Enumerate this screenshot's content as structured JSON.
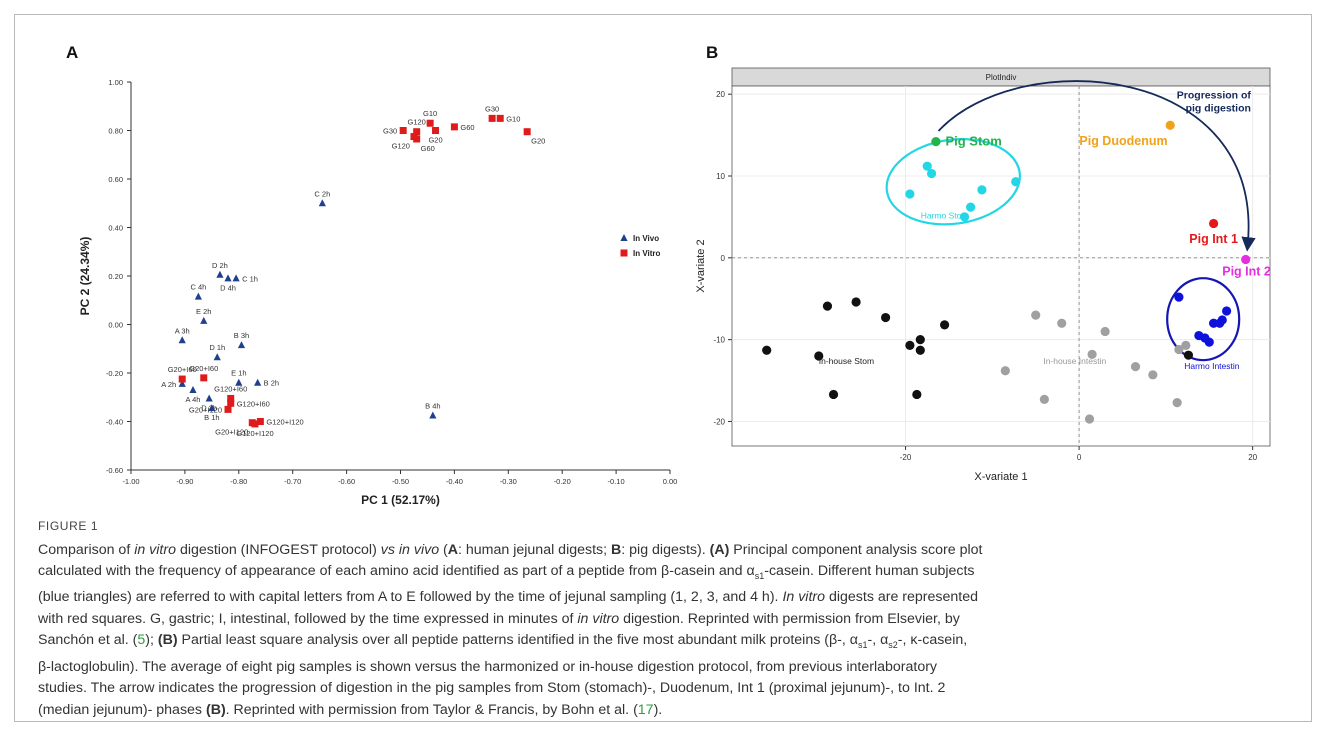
{
  "figure": {
    "panel_a_label": "A",
    "panel_b_label": "B",
    "caption_label": "FIGURE 1",
    "caption_lines": [
      [
        {
          "t": "Comparison of "
        },
        {
          "t": "in vitro",
          "i": true
        },
        {
          "t": " digestion (INFOGEST protocol) "
        },
        {
          "t": "vs in vivo",
          "i": true
        },
        {
          "t": " ("
        },
        {
          "t": "A",
          "b": true
        },
        {
          "t": ": human jejunal digests; "
        },
        {
          "t": "B",
          "b": true
        },
        {
          "t": ": pig digests). "
        },
        {
          "t": "(A)",
          "b": true
        },
        {
          "t": " Principal component analysis score plot"
        }
      ],
      [
        {
          "t": "calculated with the frequency of appearance of each amino acid identified as part of a peptide from β-casein and α"
        },
        {
          "t": "s1",
          "sub": true
        },
        {
          "t": "-casein. Different human subjects"
        }
      ],
      [
        {
          "t": "(blue triangles) are referred to with capital letters from A to E followed by the time of jejunal sampling (1, 2, 3, and 4 h). "
        },
        {
          "t": "In vitro",
          "i": true
        },
        {
          "t": " digests are represented"
        }
      ],
      [
        {
          "t": "with red squares. G, gastric; I, intestinal, followed by the time expressed in minutes of "
        },
        {
          "t": "in vitro",
          "i": true
        },
        {
          "t": " digestion. Reprinted with permission from Elsevier, by"
        }
      ],
      [
        {
          "t": "Sanchón et al. ("
        },
        {
          "t": "5",
          "link": true
        },
        {
          "t": "); "
        },
        {
          "t": "(B)",
          "b": true
        },
        {
          "t": " Partial least square analysis over all peptide patterns identified in the five most abundant milk proteins (β-, α"
        },
        {
          "t": "s1",
          "sub": true
        },
        {
          "t": "-, α"
        },
        {
          "t": "s2",
          "sub": true
        },
        {
          "t": "-, κ-casein,"
        }
      ],
      [
        {
          "t": "β-lactoglobulin). The average of eight pig samples is shown versus the harmonized or in-house digestion protocol, from previous interlaboratory"
        }
      ],
      [
        {
          "t": "studies. The arrow indicates the progression of digestion in the pig samples from Stom (stomach)-, Duodenum, Int 1 (proximal jejunum)-, to Int. 2"
        }
      ],
      [
        {
          "t": "(median jejunum)- phases "
        },
        {
          "t": "(B)",
          "b": true
        },
        {
          "t": ". Reprinted with permission from Taylor & Francis, by Bohn et al. ("
        },
        {
          "t": "17",
          "link": true
        },
        {
          "t": ")."
        }
      ]
    ]
  },
  "chart_data": [
    {
      "type": "scatter",
      "panel": "A",
      "xlabel": "PC 1 (52.17%)",
      "ylabel": "PC 2 (24.34%)",
      "xlim": [
        -1.0,
        0.0
      ],
      "ylim": [
        -0.6,
        1.0
      ],
      "x_ticks": [
        -1.0,
        -0.9,
        -0.8,
        -0.7,
        -0.6,
        -0.5,
        -0.4,
        -0.3,
        -0.2,
        -0.1,
        0.0
      ],
      "x_tick_labels": [
        "-1.00",
        "-0.90",
        "-0.80",
        "-0.70",
        "-0.60",
        "-0.50",
        "-0.40",
        "-0.30",
        "-0.20",
        "-0.10",
        "0.00"
      ],
      "y_ticks": [
        1.0,
        0.8,
        0.6,
        0.4,
        0.2,
        0.0,
        -0.2,
        -0.4,
        -0.6
      ],
      "y_tick_labels": [
        "1.00",
        "0.80",
        "0.60",
        "0.40",
        "0.20",
        "0.00",
        "-0.20",
        "-0.40",
        "-0.60"
      ],
      "legend": {
        "position": "right",
        "entries": [
          {
            "name": "In Vivo",
            "color": "#1f3f8f",
            "marker": "triangle"
          },
          {
            "name": "In Vitro",
            "color": "#e01b1b",
            "marker": "square"
          }
        ]
      },
      "series": [
        {
          "name": "In Vivo",
          "color": "#1f3f8f",
          "marker": "triangle",
          "points": [
            {
              "x": -0.645,
              "y": 0.5,
              "label": "C 2h",
              "lp": "up"
            },
            {
              "x": -0.835,
              "y": 0.205,
              "label": "D 2h",
              "lp": "up"
            },
            {
              "x": -0.82,
              "y": 0.19,
              "label": "D 4h",
              "lp": "down"
            },
            {
              "x": -0.805,
              "y": 0.19,
              "label": "C 1h",
              "lp": "right"
            },
            {
              "x": -0.875,
              "y": 0.115,
              "label": "C 4h",
              "lp": "up"
            },
            {
              "x": -0.865,
              "y": 0.015,
              "label": "E 2h",
              "lp": "up"
            },
            {
              "x": -0.905,
              "y": -0.065,
              "label": "A 3h",
              "lp": "up"
            },
            {
              "x": -0.795,
              "y": -0.085,
              "label": "B 3h",
              "lp": "up"
            },
            {
              "x": -0.84,
              "y": -0.135,
              "label": "D 1h",
              "lp": "up"
            },
            {
              "x": -0.8,
              "y": -0.24,
              "label": "E 1h",
              "lp": "up"
            },
            {
              "x": -0.765,
              "y": -0.24,
              "label": "B 2h",
              "lp": "right"
            },
            {
              "x": -0.905,
              "y": -0.245,
              "label": "A 2h",
              "lp": "left"
            },
            {
              "x": -0.885,
              "y": -0.27,
              "label": "A 4h",
              "lp": "down"
            },
            {
              "x": -0.855,
              "y": -0.305,
              "label": "D 3h",
              "lp": "down"
            },
            {
              "x": -0.85,
              "y": -0.345,
              "label": "B 1h",
              "lp": "down"
            },
            {
              "x": -0.44,
              "y": -0.375,
              "label": "B 4h",
              "lp": "up"
            }
          ]
        },
        {
          "name": "In Vitro",
          "color": "#e01b1b",
          "marker": "square",
          "points": [
            {
              "x": -0.445,
              "y": 0.83,
              "label": "G10",
              "lp": "up"
            },
            {
              "x": -0.47,
              "y": 0.795,
              "label": "G120",
              "lp": "up"
            },
            {
              "x": -0.495,
              "y": 0.8,
              "label": "G30",
              "lp": "left"
            },
            {
              "x": -0.4,
              "y": 0.815,
              "label": "G60",
              "lp": "right"
            },
            {
              "x": -0.435,
              "y": 0.8,
              "label": "G20",
              "lp": "down"
            },
            {
              "x": -0.475,
              "y": 0.775,
              "label": "G120",
              "lp": "downleft"
            },
            {
              "x": -0.47,
              "y": 0.765,
              "label": "G60",
              "lp": "downright"
            },
            {
              "x": -0.33,
              "y": 0.85,
              "label": "G30",
              "lp": "up"
            },
            {
              "x": -0.315,
              "y": 0.85,
              "label": "G10",
              "lp": "right"
            },
            {
              "x": -0.265,
              "y": 0.795,
              "label": "G20",
              "lp": "downright"
            },
            {
              "x": -0.905,
              "y": -0.225,
              "label": "G20+I60",
              "lp": "up"
            },
            {
              "x": -0.865,
              "y": -0.22,
              "label": "G20+I60",
              "lp": "up"
            },
            {
              "x": -0.815,
              "y": -0.305,
              "label": "G120+I60",
              "lp": "up"
            },
            {
              "x": -0.815,
              "y": -0.325,
              "label": "G120+I60",
              "lp": "right"
            },
            {
              "x": -0.82,
              "y": -0.35,
              "label": "G20+I120",
              "lp": "left"
            },
            {
              "x": -0.775,
              "y": -0.405,
              "label": "G20+I120",
              "lp": "downleft"
            },
            {
              "x": -0.76,
              "y": -0.4,
              "label": "G120+I120",
              "lp": "right"
            },
            {
              "x": -0.77,
              "y": -0.41,
              "label": "G120+I120",
              "lp": "down"
            }
          ]
        }
      ]
    },
    {
      "type": "scatter",
      "panel": "B",
      "title": "PlotIndiv",
      "xlabel": "X-variate 1",
      "ylabel": "X-variate 2",
      "xlim": [
        -40,
        22
      ],
      "ylim": [
        -23,
        21
      ],
      "x_ticks": [
        -20,
        0,
        20
      ],
      "y_ticks": [
        20,
        10,
        0,
        -10,
        -20
      ],
      "reference_lines": {
        "x": 0,
        "y": 0,
        "style": "dashed"
      },
      "series": [
        {
          "name": "Pig Stom",
          "color": "#22b34a",
          "points": [
            {
              "x": -16.5,
              "y": 14.2
            }
          ]
        },
        {
          "name": "Pig Duodenum",
          "color": "#f0a21c",
          "points": [
            {
              "x": 10.5,
              "y": 16.2
            }
          ]
        },
        {
          "name": "Pig Int 1",
          "color": "#e41a1a",
          "points": [
            {
              "x": 15.5,
              "y": 4.2
            }
          ]
        },
        {
          "name": "Pig Int 2",
          "color": "#e62ee0",
          "points": [
            {
              "x": 19.2,
              "y": -0.2
            }
          ]
        },
        {
          "name": "Harmo Stom",
          "color": "#22d6e6",
          "points": [
            {
              "x": -17.5,
              "y": 11.2
            },
            {
              "x": -17,
              "y": 10.3
            },
            {
              "x": -19.5,
              "y": 7.8
            },
            {
              "x": -11.2,
              "y": 8.3
            },
            {
              "x": -7.3,
              "y": 9.3
            },
            {
              "x": -12.5,
              "y": 6.2
            },
            {
              "x": -13.2,
              "y": 5.0
            }
          ]
        },
        {
          "name": "Harmo Intestin",
          "color": "#1010dd",
          "points": [
            {
              "x": 11.5,
              "y": -4.8
            },
            {
              "x": 15.5,
              "y": -8.0
            },
            {
              "x": 16.5,
              "y": -7.6
            },
            {
              "x": 17,
              "y": -6.5
            },
            {
              "x": 13.8,
              "y": -9.5
            },
            {
              "x": 14.5,
              "y": -9.8
            },
            {
              "x": 15,
              "y": -10.3
            },
            {
              "x": 16.2,
              "y": -8.0
            }
          ]
        },
        {
          "name": "In-house Stom",
          "color": "#111111",
          "points": [
            {
              "x": -36,
              "y": -11.3
            },
            {
              "x": -30,
              "y": -12
            },
            {
              "x": -29,
              "y": -5.9
            },
            {
              "x": -25.7,
              "y": -5.4
            },
            {
              "x": -22.3,
              "y": -7.3
            },
            {
              "x": -19.5,
              "y": -10.7
            },
            {
              "x": -18.3,
              "y": -10
            },
            {
              "x": -18.3,
              "y": -11.3
            },
            {
              "x": -15.5,
              "y": -8.2
            },
            {
              "x": -28.3,
              "y": -16.7
            },
            {
              "x": -18.7,
              "y": -16.7
            }
          ]
        },
        {
          "name": "In-house Intestin",
          "color": "#a0a0a0",
          "points": [
            {
              "x": -5,
              "y": -7
            },
            {
              "x": -2,
              "y": -8
            },
            {
              "x": 3,
              "y": -9
            },
            {
              "x": -8.5,
              "y": -13.8
            },
            {
              "x": 1.5,
              "y": -11.8
            },
            {
              "x": 6.5,
              "y": -13.3
            },
            {
              "x": 8.5,
              "y": -14.3
            },
            {
              "x": -4,
              "y": -17.3
            },
            {
              "x": 1.2,
              "y": -19.7
            },
            {
              "x": 11.3,
              "y": -17.7
            },
            {
              "x": 11.5,
              "y": -11.2
            },
            {
              "x": 12.3,
              "y": -10.7
            }
          ]
        },
        {
          "name": "In-house Stom (overlap)",
          "color": "#111111",
          "points": [
            {
              "x": 12.6,
              "y": -11.9
            }
          ]
        }
      ],
      "annotations": [
        {
          "text": "Pig Stom",
          "color": "#22b34a",
          "bold": true
        },
        {
          "text": "Pig Duodenum",
          "color": "#f0a21c",
          "bold": true
        },
        {
          "text": "Pig Int 1",
          "color": "#e41a1a",
          "bold": true
        },
        {
          "text": "Pig Int 2",
          "color": "#e62ee0",
          "bold": true
        },
        {
          "text": "Harmo Stom",
          "color": "#22d6e6",
          "bold": false
        },
        {
          "text": "Harmo Intestin",
          "color": "#1010dd",
          "bold": false
        },
        {
          "text": "In-house Stom",
          "color": "#222222",
          "bold": false
        },
        {
          "text": "In-house Intestin",
          "color": "#999999",
          "bold": false
        },
        {
          "text": "Progression of",
          "color": "#152a5a",
          "bold": true
        },
        {
          "text": "pig digestion",
          "color": "#152a5a",
          "bold": true
        }
      ]
    }
  ]
}
